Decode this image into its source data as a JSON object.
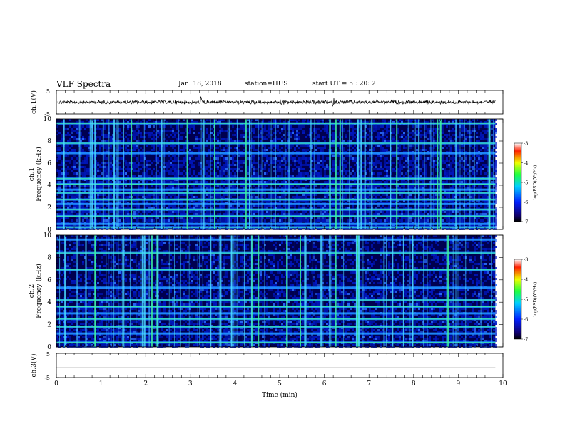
{
  "header": {
    "title": "VLF Spectra",
    "date": "Jan. 18, 2018",
    "station": "station=HUS",
    "start_ut": "start UT =  5 : 20: 2"
  },
  "chart_data": [
    {
      "type": "line",
      "panel": "ch1-waveform",
      "ylabel": "ch.1(V)",
      "ylim": [
        -5,
        5
      ],
      "y_ticks": [
        "5",
        "-5"
      ],
      "xlim": [
        0,
        10
      ],
      "note_values": "noisy waveform near 0 V with small spikes at ~3.25 min and ~6.2 min"
    },
    {
      "type": "heatmap",
      "panel": "ch1-spectrogram",
      "ylabel": "ch.1\nFrequency (kHz)",
      "ylim": [
        0,
        10
      ],
      "y_ticks": [
        "0",
        "2",
        "4",
        "6",
        "8",
        "10"
      ],
      "xlim": [
        0,
        9.83
      ],
      "horizontal_bands_khz": [
        0.2,
        0.5,
        1.2,
        1.8,
        2.3,
        2.7,
        3.3,
        3.6,
        4.1,
        4.6,
        6.9,
        7.8,
        9.6
      ],
      "colorbar": {
        "label": "log(PSD)(V²/Hz)",
        "range": [
          -7,
          -3
        ],
        "ticks": [
          "-3",
          "-4",
          "-5",
          "-6",
          "-7"
        ]
      }
    },
    {
      "type": "heatmap",
      "panel": "ch2-spectrogram",
      "ylabel": "ch.2\nFrequency (kHz)",
      "ylim": [
        0,
        10
      ],
      "y_ticks": [
        "0",
        "2",
        "4",
        "6",
        "8",
        "10"
      ],
      "xlim": [
        0,
        9.83
      ],
      "horizontal_bands_khz": [
        0.4,
        1.2,
        1.8,
        2.5,
        3.0,
        3.6,
        4.2,
        5.3,
        6.9,
        8.4,
        9.6
      ],
      "colorbar": {
        "label": "log(PSD)(V²/Hz)",
        "range": [
          -7,
          -3
        ],
        "ticks": [
          "-3",
          "-4",
          "-5",
          "-6",
          "-7"
        ]
      }
    },
    {
      "type": "line",
      "panel": "ch3-waveform",
      "ylabel": "ch.3(V)",
      "ylim": [
        -5,
        5
      ],
      "y_ticks": [
        "5",
        "-5"
      ],
      "xlim": [
        0,
        10
      ],
      "values_note": "flat line at ~ -1 V",
      "x": [
        0,
        9.83
      ],
      "y": [
        -1,
        -1
      ]
    }
  ],
  "xaxis": {
    "label": "Time (min)",
    "ticks": [
      "0",
      "1",
      "2",
      "3",
      "4",
      "5",
      "6",
      "7",
      "8",
      "9",
      "10"
    ]
  },
  "colors": {
    "background": "#000050",
    "noise": "#0018c8",
    "band": "#1e8cff",
    "band_hot": "#3cf0a0",
    "burst": "#4ad7ff"
  }
}
